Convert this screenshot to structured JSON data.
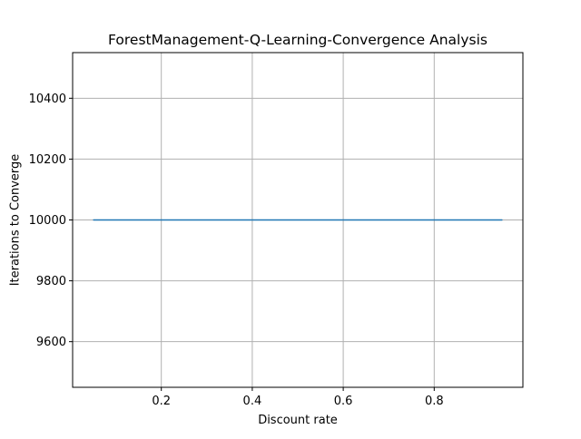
{
  "chart_data": {
    "type": "line",
    "title": "ForestManagement-Q-Learning-Convergence Analysis",
    "xlabel": "Discount rate",
    "ylabel": "Iterations to Converge",
    "xlim": [
      0.005,
      0.995
    ],
    "ylim": [
      9450,
      10550
    ],
    "xticks": [
      0.2,
      0.4,
      0.6,
      0.8
    ],
    "xtick_labels": [
      "0.2",
      "0.4",
      "0.6",
      "0.8"
    ],
    "yticks": [
      9600,
      9800,
      10000,
      10200,
      10400
    ],
    "ytick_labels": [
      "9600",
      "9800",
      "10000",
      "10200",
      "10400"
    ],
    "grid": true,
    "series": [
      {
        "color": "#1f77b4",
        "x": [
          0.05,
          0.15,
          0.25,
          0.35,
          0.45,
          0.55,
          0.65,
          0.75,
          0.85,
          0.95
        ],
        "y": [
          10000,
          10000,
          10000,
          10000,
          10000,
          10000,
          10000,
          10000,
          10000,
          10000
        ]
      }
    ]
  }
}
